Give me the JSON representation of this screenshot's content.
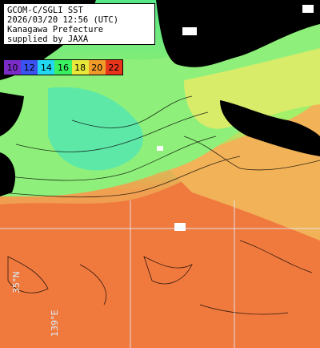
{
  "header": {
    "line1": "GCOM-C/SGLI SST",
    "line2": "2026/03/20 12:56 (UTC)",
    "line3": "Kanagawa Prefecture",
    "line4": "supplied by JAXA"
  },
  "colorbar": [
    {
      "label": "10",
      "color": "#7a2cc8"
    },
    {
      "label": "12",
      "color": "#3a52f0"
    },
    {
      "label": "14",
      "color": "#22d8f0"
    },
    {
      "label": "16",
      "color": "#38f060"
    },
    {
      "label": "18",
      "color": "#e8e83a"
    },
    {
      "label": "20",
      "color": "#f09a2a"
    },
    {
      "label": "22",
      "color": "#e8341a"
    }
  ],
  "grid_labels": {
    "lat": "35°N",
    "lon": "139°E"
  }
}
